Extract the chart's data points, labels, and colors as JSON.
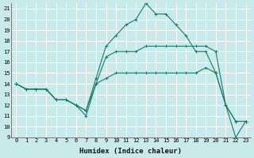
{
  "title": "",
  "xlabel": "Humidex (Indice chaleur)",
  "bg_color": "#c8eaea",
  "grid_color": "#ffffff",
  "line_color": "#1a7a6e",
  "xlim": [
    -0.5,
    23.5
  ],
  "ylim": [
    9,
    21.5
  ],
  "yticks": [
    9,
    10,
    11,
    12,
    13,
    14,
    15,
    16,
    17,
    18,
    19,
    20,
    21
  ],
  "xticks": [
    0,
    1,
    2,
    3,
    4,
    5,
    6,
    7,
    8,
    9,
    10,
    11,
    12,
    13,
    14,
    15,
    16,
    17,
    18,
    19,
    20,
    21,
    22,
    23
  ],
  "line1_x": [
    0,
    1,
    2,
    3,
    4,
    5,
    6,
    7,
    8,
    9,
    10,
    11,
    12,
    13,
    14,
    15,
    16,
    17,
    18,
    19,
    20,
    21,
    22,
    23
  ],
  "line1_y": [
    14,
    13.5,
    13.5,
    13.5,
    12.5,
    12.5,
    12,
    11,
    14,
    14.5,
    15,
    15,
    15,
    15,
    15,
    15,
    15,
    15,
    15,
    15.5,
    15,
    12,
    10.5,
    10.5
  ],
  "line2_x": [
    0,
    1,
    2,
    3,
    4,
    5,
    6,
    7,
    8,
    9,
    10,
    11,
    12,
    13,
    14,
    15,
    16,
    17,
    18,
    19,
    20,
    21,
    22,
    23
  ],
  "line2_y": [
    14,
    13.5,
    13.5,
    13.5,
    12.5,
    12.5,
    12,
    11.5,
    14.5,
    17.5,
    18.5,
    19.5,
    20,
    21.5,
    20.5,
    20.5,
    19.5,
    18.5,
    17,
    17,
    15,
    12,
    9,
    10.5
  ],
  "line3_x": [
    0,
    1,
    2,
    3,
    4,
    5,
    6,
    7,
    8,
    9,
    10,
    11,
    12,
    13,
    14,
    15,
    16,
    17,
    18,
    19,
    20,
    21,
    22,
    23
  ],
  "line3_y": [
    14,
    13.5,
    13.5,
    13.5,
    12.5,
    12.5,
    12,
    11.5,
    14,
    16.5,
    17,
    17,
    17,
    17.5,
    17.5,
    17.5,
    17.5,
    17.5,
    17.5,
    17.5,
    17,
    12,
    10.5,
    10.5
  ],
  "tick_fontsize": 5.0,
  "xlabel_fontsize": 6.5,
  "linewidth": 0.8,
  "markersize": 2.5
}
